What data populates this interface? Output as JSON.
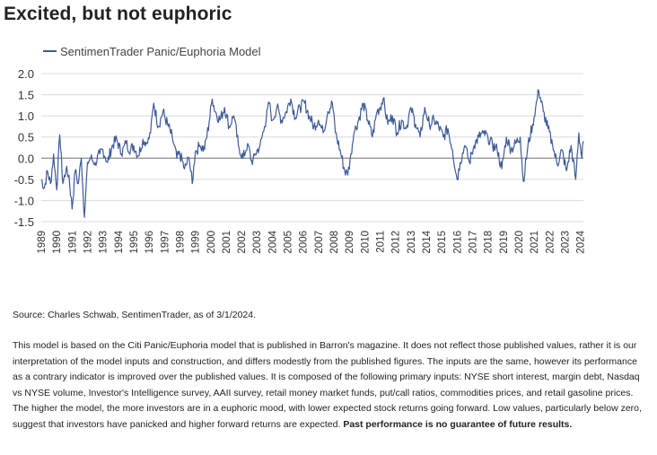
{
  "page": {
    "title": "Excited, but not euphoric",
    "source": "Source: Charles Schwab, SentimenTrader, as of 3/1/2024.",
    "note": "This model is based on the Citi Panic/Euphoria model that is published in Barron's magazine. It does not reflect those published values, rather it is our interpretation of the model inputs and construction, and differs modestly from the published figures. The inputs are the same, however its performance as a contrary indicator is improved over the published values. It is composed of the following primary inputs: NYSE short interest, margin debt, Nasdaq vs NYSE volume, Investor's Intelligence survey, AAII survey, retail money market funds, put/call ratios, commodities prices, and retail gasoline prices. The higher the model, the more investors are in a euphoric mood, with lower expected stock returns going forward. Low values, particularly below zero, suggest that investors have panicked and higher forward returns are expected.",
    "note_bold": "Past performance is no guarantee of future results."
  },
  "colors": {
    "series": "#3d5a99",
    "grid": "#d9d9d9",
    "zero_line": "#8c8c8c",
    "text": "#333333"
  },
  "chart_data": {
    "type": "line",
    "title": "",
    "xlabel": "",
    "ylabel": "",
    "ylim": [
      -1.5,
      2.0
    ],
    "yticks": [
      "2.0",
      "1.5",
      "1.0",
      "0.5",
      "0.0",
      "-0.5",
      "-1.0",
      "-1.5"
    ],
    "ytick_values": [
      2.0,
      1.5,
      1.0,
      0.5,
      0.0,
      -0.5,
      -1.0,
      -1.5
    ],
    "xlim": [
      1989,
      2024.2
    ],
    "xticks": [
      "1989",
      "1990",
      "1991",
      "1992",
      "1993",
      "1994",
      "1995",
      "1996",
      "1997",
      "1998",
      "1999",
      "2000",
      "2001",
      "2002",
      "2003",
      "2004",
      "2005",
      "2006",
      "2007",
      "2008",
      "2009",
      "2010",
      "2011",
      "2012",
      "2013",
      "2014",
      "2015",
      "2016",
      "2017",
      "2018",
      "2019",
      "2020",
      "2021",
      "2022",
      "2023",
      "2024"
    ],
    "legend_position": "top-left",
    "grid": true,
    "series": [
      {
        "name": "SentimenTrader Panic/Euphoria Model",
        "x": [
          1989.0,
          1989.2,
          1989.4,
          1989.6,
          1989.8,
          1990.0,
          1990.2,
          1990.4,
          1990.6,
          1990.8,
          1991.0,
          1991.2,
          1991.4,
          1991.6,
          1991.8,
          1992.0,
          1992.2,
          1992.5,
          1992.8,
          1993.0,
          1993.3,
          1993.6,
          1993.9,
          1994.2,
          1994.5,
          1994.8,
          1995.0,
          1995.3,
          1995.6,
          1995.9,
          1996.1,
          1996.3,
          1996.6,
          1996.9,
          1997.2,
          1997.5,
          1997.8,
          1998.0,
          1998.3,
          1998.6,
          1998.8,
          1999.0,
          1999.3,
          1999.6,
          1999.9,
          2000.1,
          2000.3,
          2000.6,
          2000.9,
          2001.2,
          2001.5,
          2001.8,
          2002.1,
          2002.4,
          2002.7,
          2002.9,
          2003.2,
          2003.5,
          2003.8,
          2004.0,
          2004.3,
          2004.6,
          2004.9,
          2005.2,
          2005.5,
          2005.8,
          2006.1,
          2006.4,
          2006.7,
          2007.0,
          2007.3,
          2007.6,
          2007.9,
          2008.1,
          2008.4,
          2008.7,
          2008.9,
          2009.1,
          2009.3,
          2009.6,
          2009.9,
          2010.2,
          2010.5,
          2010.8,
          2011.0,
          2011.2,
          2011.5,
          2011.8,
          2012.1,
          2012.4,
          2012.7,
          2013.0,
          2013.3,
          2013.6,
          2013.9,
          2014.2,
          2014.5,
          2014.8,
          2015.1,
          2015.4,
          2015.7,
          2016.0,
          2016.2,
          2016.5,
          2016.8,
          2017.1,
          2017.4,
          2017.7,
          2018.0,
          2018.3,
          2018.6,
          2018.9,
          2019.2,
          2019.5,
          2019.8,
          2020.1,
          2020.3,
          2020.6,
          2020.9,
          2021.1,
          2021.3,
          2021.6,
          2021.9,
          2022.2,
          2022.5,
          2022.8,
          2023.1,
          2023.4,
          2023.7,
          2023.9,
          2024.1,
          2024.2
        ],
        "y": [
          -0.5,
          -0.7,
          -0.3,
          -0.6,
          0.1,
          -0.75,
          0.55,
          -0.6,
          -0.3,
          -0.4,
          -1.2,
          -0.3,
          -0.6,
          0.0,
          -1.4,
          -0.1,
          0.0,
          -0.1,
          0.1,
          0.2,
          -0.1,
          0.3,
          0.45,
          0.1,
          0.35,
          0.2,
          0.3,
          0.05,
          0.45,
          0.35,
          0.6,
          1.3,
          0.75,
          1.1,
          0.8,
          0.5,
          0.0,
          0.1,
          -0.25,
          0.0,
          -0.6,
          0.15,
          0.3,
          0.2,
          0.85,
          1.4,
          1.1,
          0.9,
          1.2,
          0.75,
          1.0,
          0.3,
          0.0,
          0.35,
          -0.15,
          0.1,
          0.3,
          0.75,
          1.3,
          0.9,
          1.2,
          0.9,
          1.1,
          1.4,
          0.95,
          1.2,
          1.3,
          1.0,
          0.75,
          0.9,
          0.6,
          1.1,
          1.3,
          0.6,
          0.2,
          -0.3,
          -0.4,
          0.1,
          0.6,
          0.9,
          1.3,
          0.9,
          0.5,
          1.1,
          1.2,
          1.4,
          0.8,
          1.0,
          0.6,
          0.9,
          0.7,
          1.2,
          0.8,
          0.5,
          1.2,
          0.8,
          0.9,
          0.75,
          0.5,
          0.7,
          0.2,
          -0.5,
          -0.1,
          0.3,
          -0.1,
          0.3,
          0.5,
          0.6,
          0.5,
          0.3,
          0.2,
          -0.25,
          0.5,
          0.2,
          0.35,
          0.5,
          -0.55,
          0.3,
          0.8,
          1.2,
          1.6,
          1.1,
          0.7,
          0.3,
          -0.15,
          0.2,
          -0.3,
          0.3,
          -0.5,
          0.6,
          0.0,
          0.4
        ]
      }
    ]
  }
}
